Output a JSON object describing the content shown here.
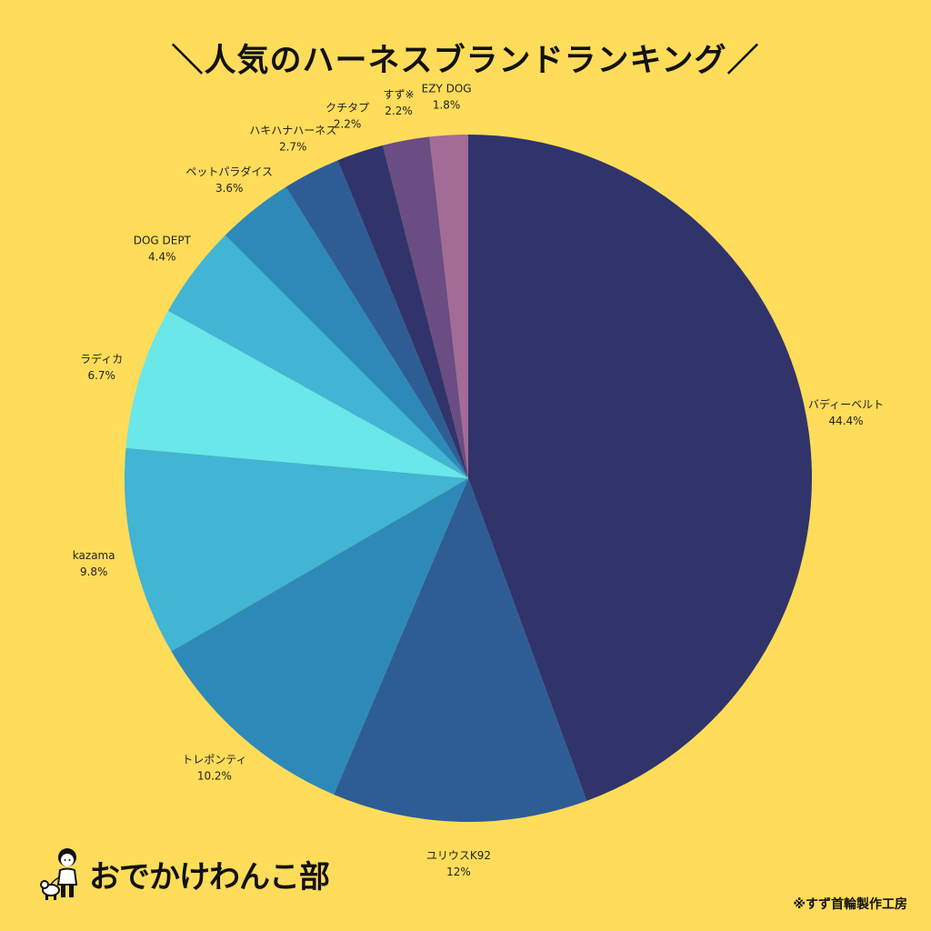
{
  "title": "＼人気のハーネスブランドランキング／",
  "brand": {
    "name": "おでかけわんこ部",
    "mascot_icon": "girl-with-dog-mascot"
  },
  "credit": "※すず首輪製作工房",
  "colors": {
    "background": "#FFDC5A"
  },
  "chart_data": {
    "type": "pie",
    "title": "＼人気のハーネスブランドランキング／",
    "start": "12 o'clock, clockwise",
    "slices": [
      {
        "label": "バディーベルト",
        "value": 44.4,
        "value_label": "44.4%",
        "color": "#30346B"
      },
      {
        "label": "ユリウスK92",
        "value": 12,
        "value_label": "12%",
        "color": "#2E5D96"
      },
      {
        "label": "トレポンティ",
        "value": 10.2,
        "value_label": "10.2%",
        "color": "#2D8AB8"
      },
      {
        "label": "kazama",
        "value": 9.8,
        "value_label": "9.8%",
        "color": "#41B5D3"
      },
      {
        "label": "ラディカ",
        "value": 6.7,
        "value_label": "6.7%",
        "color": "#6AE7E9"
      },
      {
        "label": "DOG DEPT",
        "value": 4.4,
        "value_label": "4.4%",
        "color": "#41B5D3"
      },
      {
        "label": "ペットパラダイス",
        "value": 3.6,
        "value_label": "3.6%",
        "color": "#2D8AB8"
      },
      {
        "label": "ハキハナハーネス",
        "value": 2.7,
        "value_label": "2.7%",
        "color": "#2E5D96"
      },
      {
        "label": "クチタプ",
        "value": 2.2,
        "value_label": "2.2%",
        "color": "#30346B"
      },
      {
        "label": "すず※",
        "value": 2.2,
        "value_label": "2.2%",
        "color": "#6B4C83"
      },
      {
        "label": "EZY DOG",
        "value": 1.8,
        "value_label": "1.8%",
        "color": "#A26C96"
      }
    ]
  }
}
